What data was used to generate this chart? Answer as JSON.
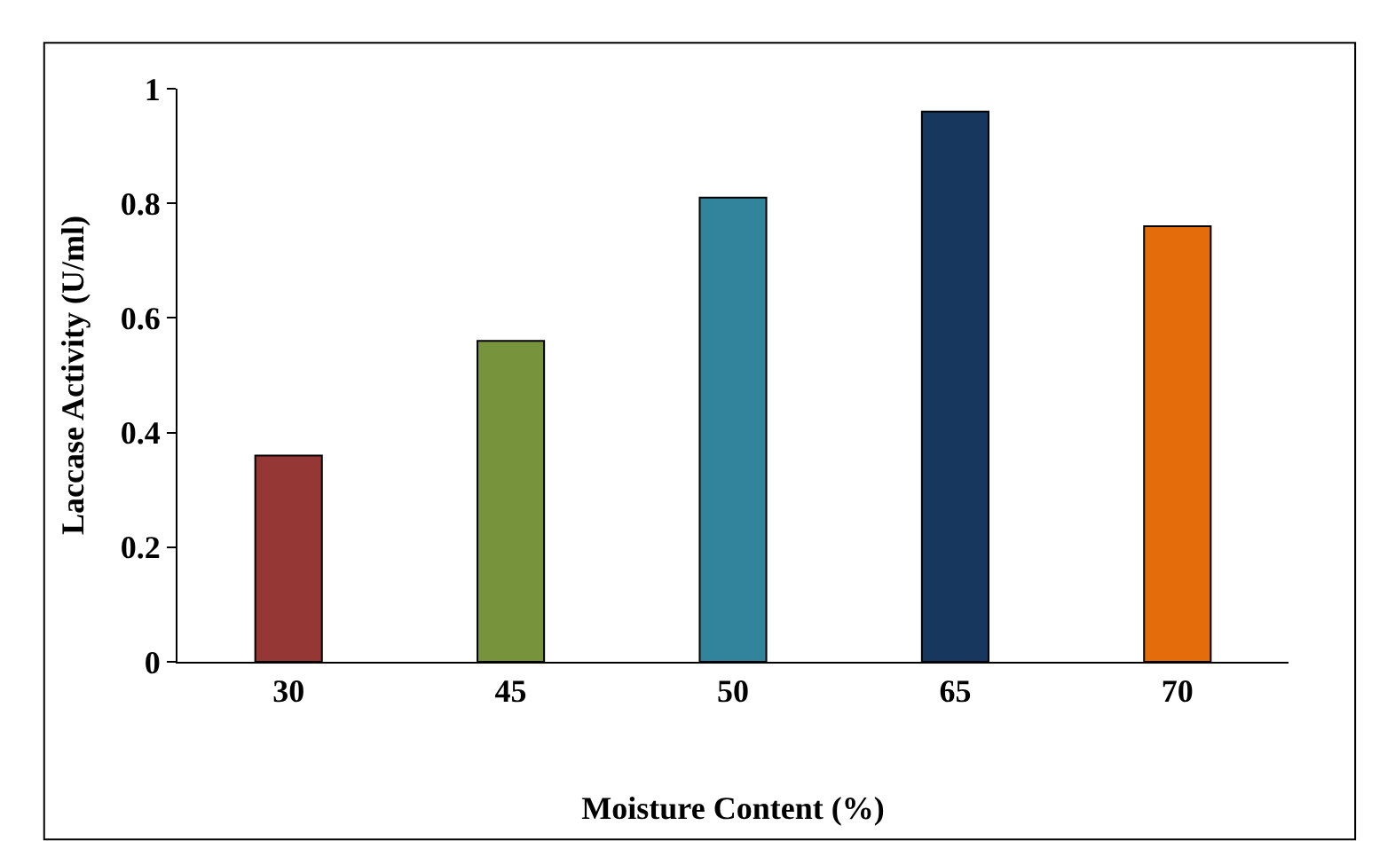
{
  "chart_data": {
    "type": "bar",
    "xlabel": "Moisture Content (%)",
    "ylabel": "Laccase Activity (U/ml)",
    "categories": [
      "30",
      "45",
      "50",
      "65",
      "70"
    ],
    "values": [
      0.36,
      0.56,
      0.81,
      0.96,
      0.76
    ],
    "colors": [
      "#953735",
      "#77933c",
      "#31849b",
      "#17375e",
      "#e46c0a"
    ],
    "ylim": [
      0,
      1
    ],
    "yticks": [
      0,
      0.2,
      0.4,
      0.6,
      0.8,
      1
    ],
    "legend": false
  }
}
